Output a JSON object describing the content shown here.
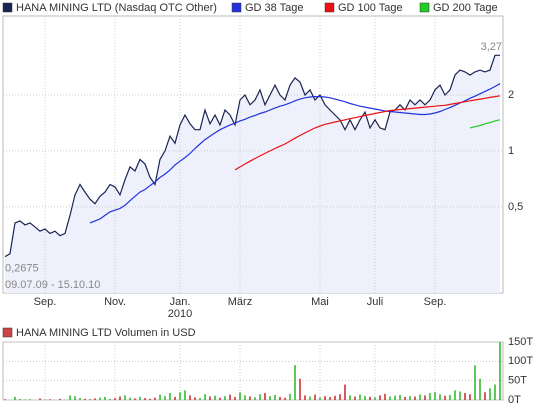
{
  "chart_data": [
    {
      "type": "line",
      "log_scale": true,
      "grid": true,
      "categories": [
        null,
        null,
        null,
        null,
        null,
        null,
        null,
        null,
        "Sep.",
        null,
        null,
        null,
        null,
        null,
        null,
        null,
        null,
        null,
        null,
        null,
        null,
        null,
        "Nov.",
        null,
        null,
        null,
        null,
        null,
        null,
        null,
        null,
        null,
        null,
        null,
        null,
        "Jan.",
        null,
        null,
        null,
        null,
        null,
        null,
        null,
        null,
        null,
        null,
        null,
        "März",
        null,
        null,
        null,
        null,
        null,
        null,
        null,
        null,
        null,
        null,
        null,
        null,
        null,
        null,
        null,
        "Mai",
        null,
        null,
        null,
        null,
        null,
        null,
        null,
        null,
        null,
        null,
        "Juli",
        null,
        null,
        null,
        null,
        null,
        null,
        null,
        null,
        null,
        null,
        null,
        "Sep.",
        null,
        null,
        null,
        null,
        null,
        null,
        null,
        null,
        null,
        null,
        null,
        null,
        null
      ],
      "x_sublabels": [
        null,
        null,
        null,
        null,
        null,
        null,
        null,
        null,
        null,
        null,
        null,
        null,
        null,
        null,
        null,
        null,
        null,
        null,
        null,
        null,
        null,
        null,
        null,
        null,
        null,
        null,
        null,
        null,
        null,
        null,
        null,
        null,
        null,
        null,
        null,
        "2010",
        null,
        null,
        null,
        null,
        null,
        null,
        null,
        null,
        null,
        null,
        null,
        null,
        null,
        null,
        null,
        null,
        null,
        null,
        null,
        null,
        null,
        null,
        null,
        null,
        null,
        null,
        null,
        null,
        null,
        null,
        null,
        null,
        null,
        null,
        null,
        null,
        null,
        null,
        null,
        null,
        null,
        null,
        null,
        null,
        null,
        null,
        null,
        null,
        null,
        null,
        null,
        null,
        null,
        null,
        null,
        null,
        null,
        null,
        null,
        null,
        null,
        null,
        null,
        null
      ],
      "series": [
        {
          "name": "HANA MINING LTD (Nasdaq OTC Other)",
          "color": "#1a2452",
          "area_color": "#eef0fb",
          "values": [
            0.27,
            0.28,
            0.41,
            0.42,
            0.4,
            0.41,
            0.39,
            0.37,
            0.38,
            0.36,
            0.37,
            0.35,
            0.36,
            0.45,
            0.58,
            0.66,
            0.6,
            0.55,
            0.52,
            0.57,
            0.6,
            0.66,
            0.64,
            0.58,
            0.7,
            0.82,
            0.78,
            0.9,
            0.85,
            0.72,
            0.66,
            0.9,
            1.0,
            1.2,
            1.1,
            1.38,
            1.56,
            1.4,
            1.3,
            1.3,
            1.66,
            1.4,
            1.56,
            1.38,
            1.66,
            1.56,
            1.38,
            1.88,
            2.0,
            1.77,
            1.88,
            2.13,
            1.77,
            2.0,
            2.26,
            2.0,
            1.88,
            2.26,
            2.47,
            2.35,
            2.0,
            2.13,
            1.88,
            2.0,
            1.77,
            1.66,
            1.56,
            1.47,
            1.3,
            1.47,
            1.3,
            1.47,
            1.62,
            1.33,
            1.47,
            1.33,
            1.3,
            1.62,
            1.66,
            1.77,
            1.66,
            1.88,
            1.77,
            1.88,
            1.77,
            1.88,
            2.13,
            2.26,
            2.0,
            2.13,
            2.56,
            2.72,
            2.66,
            2.56,
            2.66,
            2.72,
            2.66,
            2.72,
            3.27,
            3.27
          ]
        },
        {
          "name": "GD 38 Tage",
          "color": "#2233dd",
          "values": [
            null,
            null,
            null,
            null,
            null,
            null,
            null,
            null,
            null,
            null,
            null,
            null,
            null,
            null,
            null,
            null,
            null,
            0.41,
            0.42,
            0.43,
            0.45,
            0.47,
            0.48,
            0.49,
            0.51,
            0.54,
            0.57,
            0.6,
            0.62,
            0.65,
            0.68,
            0.72,
            0.75,
            0.79,
            0.84,
            0.88,
            0.92,
            0.97,
            1.03,
            1.09,
            1.15,
            1.2,
            1.25,
            1.3,
            1.34,
            1.38,
            1.41,
            1.45,
            1.48,
            1.52,
            1.55,
            1.59,
            1.62,
            1.66,
            1.7,
            1.74,
            1.77,
            1.81,
            1.86,
            1.9,
            1.93,
            1.95,
            1.96,
            1.96,
            1.95,
            1.93,
            1.9,
            1.87,
            1.84,
            1.8,
            1.77,
            1.74,
            1.72,
            1.7,
            1.68,
            1.66,
            1.64,
            1.63,
            1.62,
            1.61,
            1.6,
            1.59,
            1.58,
            1.57,
            1.57,
            1.58,
            1.6,
            1.63,
            1.67,
            1.71,
            1.76,
            1.81,
            1.86,
            1.92,
            1.97,
            2.03,
            2.09,
            2.15,
            2.22,
            2.3
          ]
        },
        {
          "name": "GD 100 Tage",
          "color": "#ee1111",
          "values": [
            null,
            null,
            null,
            null,
            null,
            null,
            null,
            null,
            null,
            null,
            null,
            null,
            null,
            null,
            null,
            null,
            null,
            null,
            null,
            null,
            null,
            null,
            null,
            null,
            null,
            null,
            null,
            null,
            null,
            null,
            null,
            null,
            null,
            null,
            null,
            null,
            null,
            null,
            null,
            null,
            null,
            null,
            null,
            null,
            null,
            null,
            0.79,
            0.82,
            0.85,
            0.88,
            0.91,
            0.94,
            0.97,
            1.0,
            1.03,
            1.06,
            1.09,
            1.13,
            1.17,
            1.21,
            1.25,
            1.29,
            1.33,
            1.36,
            1.39,
            1.41,
            1.43,
            1.45,
            1.47,
            1.49,
            1.51,
            1.53,
            1.55,
            1.57,
            1.59,
            1.61,
            1.63,
            1.65,
            1.66,
            1.67,
            1.68,
            1.69,
            1.7,
            1.71,
            1.72,
            1.73,
            1.74,
            1.75,
            1.76,
            1.78,
            1.8,
            1.82,
            1.84,
            1.86,
            1.88,
            1.9,
            1.92,
            1.94,
            1.96,
            1.98
          ]
        },
        {
          "name": "GD 200 Tage",
          "color": "#22cc22",
          "values": [
            null,
            null,
            null,
            null,
            null,
            null,
            null,
            null,
            null,
            null,
            null,
            null,
            null,
            null,
            null,
            null,
            null,
            null,
            null,
            null,
            null,
            null,
            null,
            null,
            null,
            null,
            null,
            null,
            null,
            null,
            null,
            null,
            null,
            null,
            null,
            null,
            null,
            null,
            null,
            null,
            null,
            null,
            null,
            null,
            null,
            null,
            null,
            null,
            null,
            null,
            null,
            null,
            null,
            null,
            null,
            null,
            null,
            null,
            null,
            null,
            null,
            null,
            null,
            null,
            null,
            null,
            null,
            null,
            null,
            null,
            null,
            null,
            null,
            null,
            null,
            null,
            null,
            null,
            null,
            null,
            null,
            null,
            null,
            null,
            null,
            null,
            null,
            null,
            null,
            null,
            null,
            null,
            null,
            1.33,
            1.35,
            1.37,
            1.4,
            1.42,
            1.45,
            1.47
          ]
        }
      ],
      "ylim": [
        0.172,
        5.32
      ],
      "yticks": [
        {
          "value": 0.5,
          "label": "0,5"
        },
        1,
        2
      ],
      "max_label": {
        "value": 3.27,
        "label": "3,27"
      },
      "min_label": {
        "value": 0.2675,
        "label": "0,2675"
      },
      "date_range": "09.07.09 - 15.10.10"
    },
    {
      "type": "bar",
      "title": "HANA MINING LTD Volumen in USD",
      "color": "#cc4444",
      "up_color": "#33bb33",
      "down_color": "#cc3333",
      "values": [
        2,
        0,
        8,
        3,
        1,
        2,
        0,
        4,
        1,
        2,
        0,
        3,
        1,
        12,
        10,
        5,
        3,
        2,
        4,
        6,
        8,
        3,
        5,
        9,
        12,
        6,
        4,
        8,
        5,
        3,
        6,
        14,
        10,
        18,
        8,
        20,
        25,
        12,
        7,
        5,
        15,
        9,
        11,
        6,
        10,
        14,
        8,
        20,
        12,
        9,
        7,
        15,
        18,
        10,
        13,
        8,
        6,
        16,
        90,
        55,
        12,
        9,
        14,
        7,
        10,
        8,
        11,
        15,
        40,
        12,
        9,
        14,
        10,
        8,
        7,
        12,
        16,
        9,
        11,
        13,
        8,
        10,
        9,
        14,
        12,
        18,
        20,
        15,
        11,
        13,
        25,
        22,
        18,
        15,
        90,
        55,
        20,
        30,
        40,
        150
      ],
      "ylim": [
        0,
        150
      ],
      "yticks": [
        {
          "value": 0,
          "label": "0T"
        },
        {
          "value": 50,
          "label": "50T"
        },
        {
          "value": 100,
          "label": "100T"
        },
        {
          "value": 150,
          "label": "150T"
        }
      ]
    }
  ]
}
